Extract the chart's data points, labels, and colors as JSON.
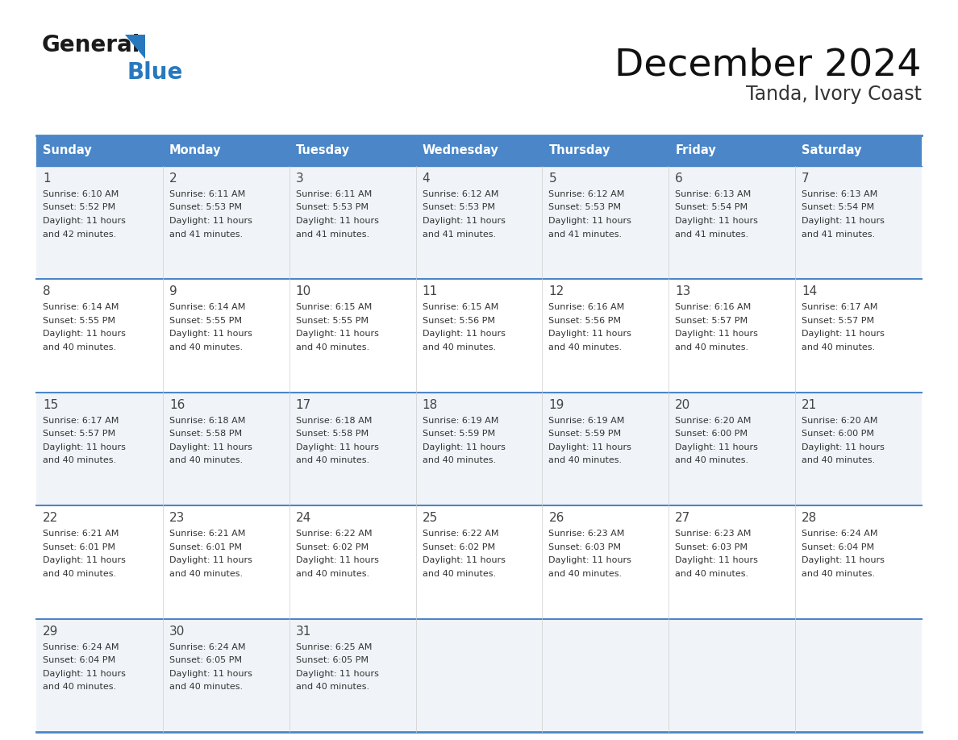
{
  "title": "December 2024",
  "subtitle": "Tanda, Ivory Coast",
  "days_of_week": [
    "Sunday",
    "Monday",
    "Tuesday",
    "Wednesday",
    "Thursday",
    "Friday",
    "Saturday"
  ],
  "header_bg": "#4a86c8",
  "header_text_color": "#ffffff",
  "row_bg_colors": [
    "#f0f4f8",
    "#ffffff",
    "#f0f4f8",
    "#ffffff",
    "#f0f4f8"
  ],
  "border_color": "#4a86c8",
  "separator_color": "#c0c8d8",
  "text_color": "#333333",
  "day_number_color": "#444444",
  "calendar_data": [
    {
      "day": 1,
      "col": 0,
      "row": 0,
      "sunrise": "6:10 AM",
      "sunset": "5:52 PM",
      "daylight": "11 hours and 42 minutes."
    },
    {
      "day": 2,
      "col": 1,
      "row": 0,
      "sunrise": "6:11 AM",
      "sunset": "5:53 PM",
      "daylight": "11 hours and 41 minutes."
    },
    {
      "day": 3,
      "col": 2,
      "row": 0,
      "sunrise": "6:11 AM",
      "sunset": "5:53 PM",
      "daylight": "11 hours and 41 minutes."
    },
    {
      "day": 4,
      "col": 3,
      "row": 0,
      "sunrise": "6:12 AM",
      "sunset": "5:53 PM",
      "daylight": "11 hours and 41 minutes."
    },
    {
      "day": 5,
      "col": 4,
      "row": 0,
      "sunrise": "6:12 AM",
      "sunset": "5:53 PM",
      "daylight": "11 hours and 41 minutes."
    },
    {
      "day": 6,
      "col": 5,
      "row": 0,
      "sunrise": "6:13 AM",
      "sunset": "5:54 PM",
      "daylight": "11 hours and 41 minutes."
    },
    {
      "day": 7,
      "col": 6,
      "row": 0,
      "sunrise": "6:13 AM",
      "sunset": "5:54 PM",
      "daylight": "11 hours and 41 minutes."
    },
    {
      "day": 8,
      "col": 0,
      "row": 1,
      "sunrise": "6:14 AM",
      "sunset": "5:55 PM",
      "daylight": "11 hours and 40 minutes."
    },
    {
      "day": 9,
      "col": 1,
      "row": 1,
      "sunrise": "6:14 AM",
      "sunset": "5:55 PM",
      "daylight": "11 hours and 40 minutes."
    },
    {
      "day": 10,
      "col": 2,
      "row": 1,
      "sunrise": "6:15 AM",
      "sunset": "5:55 PM",
      "daylight": "11 hours and 40 minutes."
    },
    {
      "day": 11,
      "col": 3,
      "row": 1,
      "sunrise": "6:15 AM",
      "sunset": "5:56 PM",
      "daylight": "11 hours and 40 minutes."
    },
    {
      "day": 12,
      "col": 4,
      "row": 1,
      "sunrise": "6:16 AM",
      "sunset": "5:56 PM",
      "daylight": "11 hours and 40 minutes."
    },
    {
      "day": 13,
      "col": 5,
      "row": 1,
      "sunrise": "6:16 AM",
      "sunset": "5:57 PM",
      "daylight": "11 hours and 40 minutes."
    },
    {
      "day": 14,
      "col": 6,
      "row": 1,
      "sunrise": "6:17 AM",
      "sunset": "5:57 PM",
      "daylight": "11 hours and 40 minutes."
    },
    {
      "day": 15,
      "col": 0,
      "row": 2,
      "sunrise": "6:17 AM",
      "sunset": "5:57 PM",
      "daylight": "11 hours and 40 minutes."
    },
    {
      "day": 16,
      "col": 1,
      "row": 2,
      "sunrise": "6:18 AM",
      "sunset": "5:58 PM",
      "daylight": "11 hours and 40 minutes."
    },
    {
      "day": 17,
      "col": 2,
      "row": 2,
      "sunrise": "6:18 AM",
      "sunset": "5:58 PM",
      "daylight": "11 hours and 40 minutes."
    },
    {
      "day": 18,
      "col": 3,
      "row": 2,
      "sunrise": "6:19 AM",
      "sunset": "5:59 PM",
      "daylight": "11 hours and 40 minutes."
    },
    {
      "day": 19,
      "col": 4,
      "row": 2,
      "sunrise": "6:19 AM",
      "sunset": "5:59 PM",
      "daylight": "11 hours and 40 minutes."
    },
    {
      "day": 20,
      "col": 5,
      "row": 2,
      "sunrise": "6:20 AM",
      "sunset": "6:00 PM",
      "daylight": "11 hours and 40 minutes."
    },
    {
      "day": 21,
      "col": 6,
      "row": 2,
      "sunrise": "6:20 AM",
      "sunset": "6:00 PM",
      "daylight": "11 hours and 40 minutes."
    },
    {
      "day": 22,
      "col": 0,
      "row": 3,
      "sunrise": "6:21 AM",
      "sunset": "6:01 PM",
      "daylight": "11 hours and 40 minutes."
    },
    {
      "day": 23,
      "col": 1,
      "row": 3,
      "sunrise": "6:21 AM",
      "sunset": "6:01 PM",
      "daylight": "11 hours and 40 minutes."
    },
    {
      "day": 24,
      "col": 2,
      "row": 3,
      "sunrise": "6:22 AM",
      "sunset": "6:02 PM",
      "daylight": "11 hours and 40 minutes."
    },
    {
      "day": 25,
      "col": 3,
      "row": 3,
      "sunrise": "6:22 AM",
      "sunset": "6:02 PM",
      "daylight": "11 hours and 40 minutes."
    },
    {
      "day": 26,
      "col": 4,
      "row": 3,
      "sunrise": "6:23 AM",
      "sunset": "6:03 PM",
      "daylight": "11 hours and 40 minutes."
    },
    {
      "day": 27,
      "col": 5,
      "row": 3,
      "sunrise": "6:23 AM",
      "sunset": "6:03 PM",
      "daylight": "11 hours and 40 minutes."
    },
    {
      "day": 28,
      "col": 6,
      "row": 3,
      "sunrise": "6:24 AM",
      "sunset": "6:04 PM",
      "daylight": "11 hours and 40 minutes."
    },
    {
      "day": 29,
      "col": 0,
      "row": 4,
      "sunrise": "6:24 AM",
      "sunset": "6:04 PM",
      "daylight": "11 hours and 40 minutes."
    },
    {
      "day": 30,
      "col": 1,
      "row": 4,
      "sunrise": "6:24 AM",
      "sunset": "6:05 PM",
      "daylight": "11 hours and 40 minutes."
    },
    {
      "day": 31,
      "col": 2,
      "row": 4,
      "sunrise": "6:25 AM",
      "sunset": "6:05 PM",
      "daylight": "11 hours and 40 minutes."
    }
  ],
  "num_rows": 5,
  "num_cols": 7,
  "logo_general_color": "#1a1a1a",
  "logo_blue_color": "#2878be",
  "logo_triangle_color": "#2878be"
}
